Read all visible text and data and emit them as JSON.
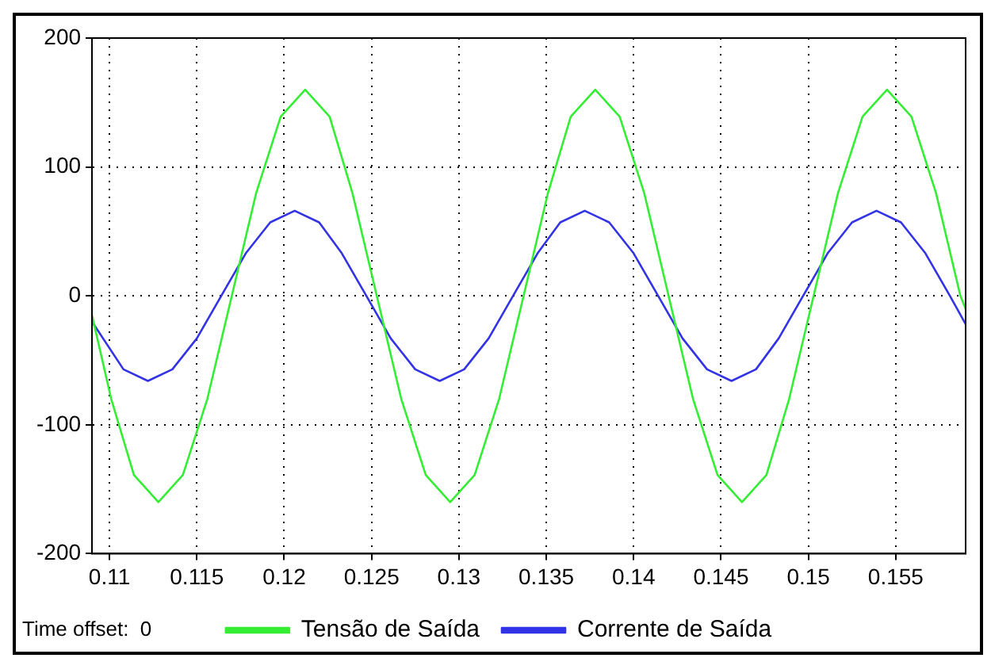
{
  "chart_data": {
    "type": "line",
    "annotations": [
      "Time offset:  0"
    ],
    "xlim": [
      0.109,
      0.159
    ],
    "xticks": [
      0.11,
      0.115,
      0.12,
      0.125,
      0.13,
      0.135,
      0.14,
      0.145,
      0.15,
      0.155
    ],
    "ylim": [
      -200,
      200
    ],
    "yticks": [
      -200,
      -100,
      0,
      100,
      200
    ],
    "grid": true,
    "legend": "bottom",
    "marker": "none",
    "line_style": "solid",
    "series": [
      {
        "name": "Tensão de Saída",
        "color": "#33ee33",
        "x": [
          0.109,
          0.1101,
          0.1114,
          0.1128,
          0.1142,
          0.1156,
          0.117,
          0.1184,
          0.1198,
          0.1212,
          0.1226,
          0.1239,
          0.1253,
          0.1267,
          0.1281,
          0.1295,
          0.1309,
          0.1323,
          0.1337,
          0.1351,
          0.1364,
          0.1378,
          0.1392,
          0.1406,
          0.142,
          0.1434,
          0.1448,
          0.1462,
          0.1476,
          0.1489,
          0.1503,
          0.1517,
          0.1531,
          0.1545,
          0.1559,
          0.1573,
          0.1587,
          0.159
        ],
        "values": [
          -15,
          -80,
          -139,
          -160,
          -139,
          -80,
          0,
          80,
          139,
          160,
          139,
          80,
          0,
          -80,
          -139,
          -160,
          -139,
          -80,
          0,
          80,
          139,
          160,
          139,
          80,
          0,
          -80,
          -139,
          -160,
          -139,
          -80,
          0,
          80,
          139,
          160,
          139,
          80,
          0,
          -10
        ]
      },
      {
        "name": "Corrente de Saída",
        "color": "#3333e6",
        "x": [
          0.109,
          0.1108,
          0.1122,
          0.1136,
          0.115,
          0.1164,
          0.1178,
          0.1192,
          0.1206,
          0.122,
          0.1233,
          0.1247,
          0.1261,
          0.1275,
          0.1289,
          0.1303,
          0.1317,
          0.1331,
          0.1345,
          0.1358,
          0.1372,
          0.1386,
          0.14,
          0.1414,
          0.1428,
          0.1442,
          0.1456,
          0.147,
          0.1483,
          0.1497,
          0.1511,
          0.1525,
          0.1539,
          0.1553,
          0.1567,
          0.1581,
          0.159
        ],
        "values": [
          -20,
          -57,
          -66,
          -57,
          -33,
          0,
          33,
          57,
          66,
          57,
          33,
          0,
          -33,
          -57,
          -66,
          -57,
          -33,
          0,
          33,
          57,
          66,
          57,
          33,
          0,
          -33,
          -57,
          -66,
          -57,
          -33,
          0,
          33,
          57,
          66,
          57,
          33,
          0,
          -22
        ]
      }
    ]
  }
}
